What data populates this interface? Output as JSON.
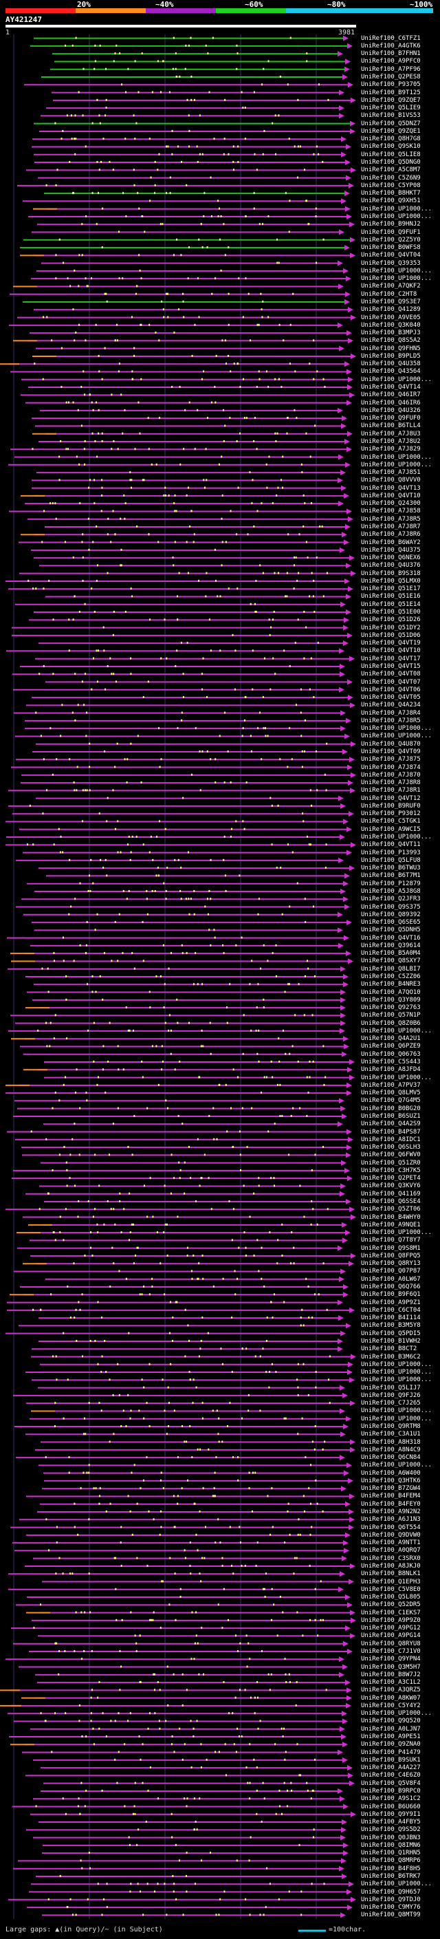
{
  "scale": {
    "labels": [
      "20%",
      "~40%",
      "~60%",
      "~80%",
      "~100%"
    ],
    "colors": [
      "#ff1f1f",
      "#ff8c1f",
      "#a020c0",
      "#1fd11f",
      "#1fc8e8"
    ]
  },
  "query": {
    "name": "AY421247",
    "start": "1",
    "end": "3981"
  },
  "colors": {
    "high": "#20c020",
    "mid": "#d030d0",
    "low": "#ff8c1f",
    "gap": "#ffff80",
    "arrow": "#d030d0",
    "grid": "#333366"
  },
  "hits": [
    "UniRef100_C6TFZ1",
    "UniRef100_A4GTK6",
    "UniRef100_B7FHN1",
    "UniRef100_A9PFC0",
    "UniRef100_A7PF96",
    "UniRef100_Q2PES8",
    "UniRef100_P93705",
    "UniRef100_B9T125",
    "UniRef100_Q9ZQE7",
    "UniRef100_Q5LIE9",
    "UniRef100_B1VS53",
    "UniRef100_Q5DNZ7",
    "UniRef100_Q9ZQE1",
    "UniRef100_Q8H7G8",
    "UniRef100_Q9SK10",
    "UniRef100_Q5LIE8",
    "UniRef100_Q5DNG0",
    "UniRef100_A5C8M7",
    "UniRef100_C5Z6N9",
    "UniRef100_C5YP08",
    "UniRef100_B8HKT7",
    "UniRef100_Q9XH51",
    "UniRef100_UP1000...",
    "UniRef100_UP1000...",
    "UniRef100_B9HNJ2",
    "UniRef100_Q9FUF1",
    "UniRef100_Q2Z5Y0",
    "UniRef100_B0WFS8",
    "UniRef100_Q4VT04",
    "UniRef100_Q39353",
    "UniRef100_UP1000...",
    "UniRef100_UP1000...",
    "UniRef100_A7QKF2",
    "UniRef100_C2HT8",
    "UniRef100_Q9S3E7",
    "UniRef100_Q41289",
    "UniRef100_A9VE05",
    "UniRef100_Q3K040",
    "UniRef100_B3MPJ3",
    "UniRef100_Q8S5A2",
    "UniRef100_Q9FHN5",
    "UniRef100_B9PLD5",
    "UniRef100_Q4U358",
    "UniRef100_Q43564",
    "UniRef100_UP1000...",
    "UniRef100_Q4VT14",
    "UniRef100_Q46IR7",
    "UniRef100_Q46IR6",
    "UniRef100_Q4U326",
    "UniRef100_Q9FUF0",
    "UniRef100_B6TLL4",
    "UniRef100_A7J8U3",
    "UniRef100_A7J8U2",
    "UniRef100_A7J829",
    "UniRef100_UP1000...",
    "UniRef100_UP1000...",
    "UniRef100_A7J851",
    "UniRef100_Q8VVV0",
    "UniRef100_Q4VT13",
    "UniRef100_Q4VT10",
    "UniRef100_Q24300",
    "UniRef100_A7J858",
    "UniRef100_A7J8R5",
    "UniRef100_A7J8R7",
    "UniRef100_A7J8R6",
    "UniRef100_B6WAY2",
    "UniRef100_Q4U375",
    "UniRef100_Q6NEX6",
    "UniRef100_Q4U376",
    "UniRef100_B9S318",
    "UniRef100_Q5LMX0",
    "UniRef100_Q51E17",
    "UniRef100_Q51E16",
    "UniRef100_Q51E14",
    "UniRef100_Q51E00",
    "UniRef100_Q51D26",
    "UniRef100_Q51DY2",
    "UniRef100_Q51D06",
    "UniRef100_Q4VT19",
    "UniRef100_Q4VT10",
    "UniRef100_Q4VT17",
    "UniRef100_Q4VT15",
    "UniRef100_Q4VT08",
    "UniRef100_Q4VT07",
    "UniRef100_Q4VT06",
    "UniRef100_Q4VT05",
    "UniRef100_Q4A234",
    "UniRef100_A7J8R4",
    "UniRef100_A7J8R5",
    "UniRef100_UP1000...",
    "UniRef100_UP1000...",
    "UniRef100_Q4U870",
    "UniRef100_Q4VT09",
    "UniRef100_A7J875",
    "UniRef100_A7J874",
    "UniRef100_A7J870",
    "UniRef100_A7J8R8",
    "UniRef100_A7J8R1",
    "UniRef100_Q4VT12",
    "UniRef100_B9RUF0",
    "UniRef100_P93012",
    "UniRef100_C5TGK1",
    "UniRef100_A9WCI5",
    "UniRef100_UP1000...",
    "UniRef100_Q4VT11",
    "UniRef100_P13993",
    "UniRef100_Q5LFU8",
    "UniRef100_B6TWU3",
    "UniRef100_B6T7M1",
    "UniRef100_P12879",
    "UniRef100_A5J8G8",
    "UniRef100_Q2JFR3",
    "UniRef100_Q9S375",
    "UniRef100_Q89392",
    "UniRef100_Q6SE65",
    "UniRef100_Q5DNH5",
    "UniRef100_Q4VT16",
    "UniRef100_Q39614",
    "UniRef100_B5A0M4",
    "UniRef100_Q8SXY7",
    "UniRef100_Q8LBI7",
    "UniRef100_C5ZZ06",
    "UniRef100_B4NRE3",
    "UniRef100_A7QO10",
    "UniRef100_Q3Y809",
    "UniRef100_Q92763",
    "UniRef100_Q57N1P",
    "UniRef100_Q8Z0B6",
    "UniRef100_UP1000...",
    "UniRef100_Q4A2U1",
    "UniRef100_Q6PZE9",
    "UniRef100_Q06763",
    "UniRef100_C5S443",
    "UniRef100_A8JFD4",
    "UniRef100_UP1000...",
    "UniRef100_A7PV37",
    "UniRef100_Q8LMV5",
    "UniRef100_Q7G4M5",
    "UniRef100_B0BG20",
    "UniRef100_B6SUZ1",
    "UniRef100_Q4A2S9",
    "UniRef100_B4PS87",
    "UniRef100_A8IDC1",
    "UniRef100_Q6SLH3",
    "UniRef100_Q6FWV0",
    "UniRef100_Q51ZR0",
    "UniRef100_C3H7K5",
    "UniRef100_Q2PET4",
    "UniRef100_Q3KVY6",
    "UniRef100_Q41169",
    "UniRef100_Q6SSE4",
    "UniRef100_Q5ZT06",
    "UniRef100_B4WHY0",
    "UniRef100_A9NQE1",
    "UniRef100_UP1000...",
    "UniRef100_Q7T8Y7",
    "UniRef100_Q9S8M1",
    "UniRef100_Q8FPQ5",
    "UniRef100_Q8RY13",
    "UniRef100_Q07P87",
    "UniRef100_A0LW67",
    "UniRef100_Q6Q766",
    "UniRef100_B9F6Q1",
    "UniRef100_A9P9Z1",
    "UniRef100_C6CT04",
    "UniRef100_B4I114",
    "UniRef100_B3M5Y8",
    "UniRef100_Q5PDI5",
    "UniRef100_B1VWH2",
    "UniRef100_B8CT2",
    "UniRef100_B3M6C2",
    "UniRef100_UP1000...",
    "UniRef100_UP1000...",
    "UniRef100_UP1000...",
    "UniRef100_Q5LIJ7",
    "UniRef100_Q9FJ26",
    "UniRef100_C7J265",
    "UniRef100_UP1000...",
    "UniRef100_UP1000...",
    "UniRef100_Q9RTM8",
    "UniRef100_C3A1U1",
    "UniRef100_A8H318",
    "UniRef100_A8N4C9",
    "UniRef100_Q6CN84",
    "UniRef100_UP1000...",
    "UniRef100_A6W400",
    "UniRef100_Q3HTK6",
    "UniRef100_B7ZGW4",
    "UniRef100_B4FEM4",
    "UniRef100_B4FEY0",
    "UniRef100_A9N2N2",
    "UniRef100_A6J1N3",
    "UniRef100_Q6T554",
    "UniRef100_Q9DVW0",
    "UniRef100_A9NTT1",
    "UniRef100_A0QRQ7",
    "UniRef100_C3SRX0",
    "UniRef100_A8JKJ0",
    "UniRef100_B8NLK1",
    "UniRef100_Q1EPH3",
    "UniRef100_C5V8E0",
    "UniRef100_Q5L805",
    "UniRef100_Q52DR5",
    "UniRef100_C1EKS7",
    "UniRef100_A9P9Z0",
    "UniRef100_A9PG12",
    "UniRef100_A9PG14",
    "UniRef100_Q8RYU8",
    "UniRef100_C7J1V0",
    "UniRef100_Q9YPN4",
    "UniRef100_Q3M5H7",
    "UniRef100_B8W7J2",
    "UniRef100_A3C1L2",
    "UniRef100_A3QRZ5",
    "UniRef100_A8KW07",
    "UniRef100_C5Y4Y2",
    "UniRef100_UP1000...",
    "UniRef100_Q9Q520",
    "UniRef100_A0LJN7",
    "UniRef100_A9PE51",
    "UniRef100_Q9ZNA0",
    "UniRef100_P41479",
    "UniRef100_B9SUK1",
    "UniRef100_A4A227",
    "UniRef100_C4E6Z0",
    "UniRef100_Q5V8F4",
    "UniRef100_B9RPC0",
    "UniRef100_A9S1C2",
    "UniRef100_B6U660",
    "UniRef100_Q9Y9I1",
    "UniRef100_A4FBY5",
    "UniRef100_Q9S5D2",
    "UniRef100_Q0JBN3",
    "UniRef100_Q8IMN6",
    "UniRef100_Q1RHN5",
    "UniRef100_Q8MRP6",
    "UniRef100_B4F8H5",
    "UniRef100_B6TRK7",
    "UniRef100_UP1000...",
    "UniRef100_Q9H657",
    "UniRef100_Q9TDJ0",
    "UniRef100_C9MY76",
    "UniRef100_Q8MT99"
  ],
  "legend": {
    "gaps_label": "Large gaps: ▲(in Query)/~ (in Subject)",
    "scale_label": "=100char."
  }
}
